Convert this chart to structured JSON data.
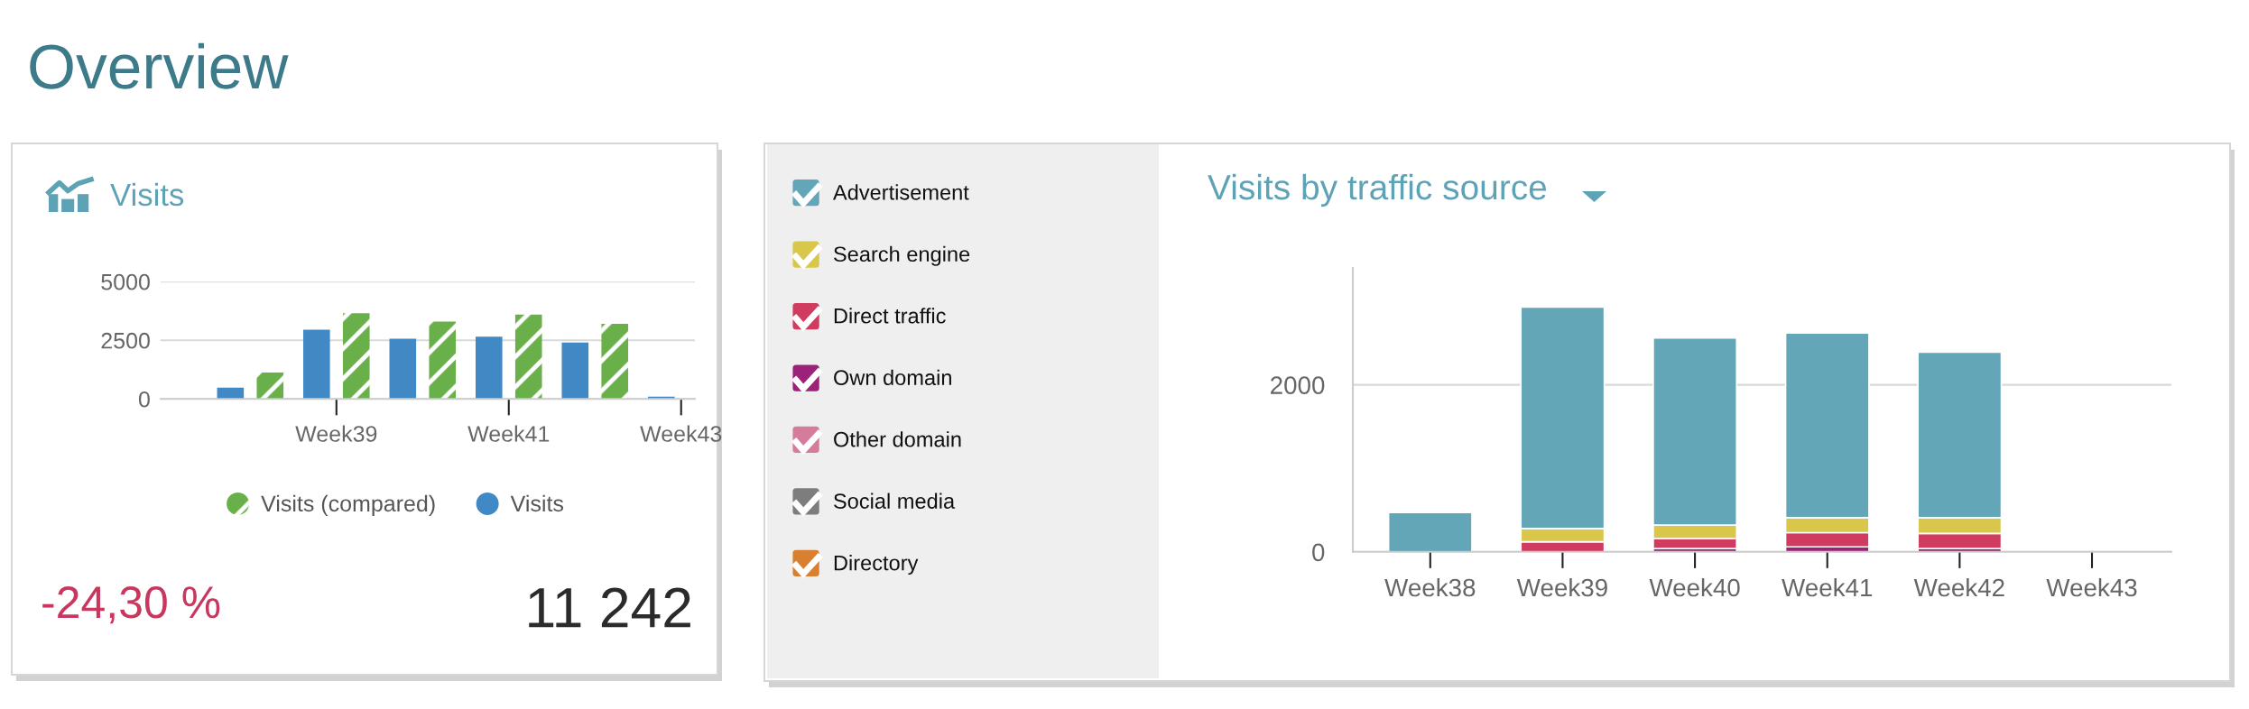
{
  "chart_data": [
    {
      "type": "other",
      "title": "Overview"
    },
    {
      "type": "bar",
      "title": "Visits",
      "categories": [
        null,
        "Week39",
        null,
        "Week41",
        null,
        "Week43"
      ],
      "series": [
        {
          "name": "Visits",
          "color": "#4189c5",
          "values": [
            480,
            2950,
            2570,
            2650,
            2400,
            100
          ]
        },
        {
          "name": "Visits (compared)",
          "color": "#6ab04a",
          "values": [
            1130,
            3650,
            3300,
            3600,
            3200,
            null
          ]
        }
      ],
      "ylim": [
        0,
        5000
      ],
      "yticks": [
        0,
        2500,
        5000
      ],
      "grid": "y",
      "legend": "bottom",
      "annotations": [
        "-24,30 %",
        "11 242"
      ]
    },
    {
      "type": "bar",
      "title": "Visits by traffic source",
      "stacked": true,
      "categories": [
        "Week38",
        "Week39",
        "Week40",
        "Week41",
        "Week42",
        "Week43"
      ],
      "series": [
        {
          "name": "Directory",
          "color": "#d8802f",
          "values": [
            0,
            0,
            0,
            0,
            0,
            0
          ]
        },
        {
          "name": "Social media",
          "color": "#7d7d7d",
          "values": [
            0,
            0,
            0,
            0,
            0,
            0
          ]
        },
        {
          "name": "Other domain",
          "color": "#d77b9d",
          "values": [
            0,
            0,
            0,
            0,
            0,
            0
          ]
        },
        {
          "name": "Own domain",
          "color": "#9b2278",
          "values": [
            0,
            0,
            40,
            60,
            40,
            0
          ]
        },
        {
          "name": "Direct traffic",
          "color": "#cf3c60",
          "values": [
            0,
            120,
            120,
            170,
            180,
            0
          ]
        },
        {
          "name": "Search engine",
          "color": "#d8c74a",
          "values": [
            0,
            160,
            160,
            180,
            190,
            0
          ]
        },
        {
          "name": "Advertisement",
          "color": "#62a6b8",
          "values": [
            470,
            2650,
            2240,
            2210,
            1980,
            0
          ]
        }
      ],
      "ylim": [
        0,
        3400
      ],
      "yticks": [
        0,
        2000
      ],
      "grid": "y",
      "legend": "left"
    }
  ]
}
